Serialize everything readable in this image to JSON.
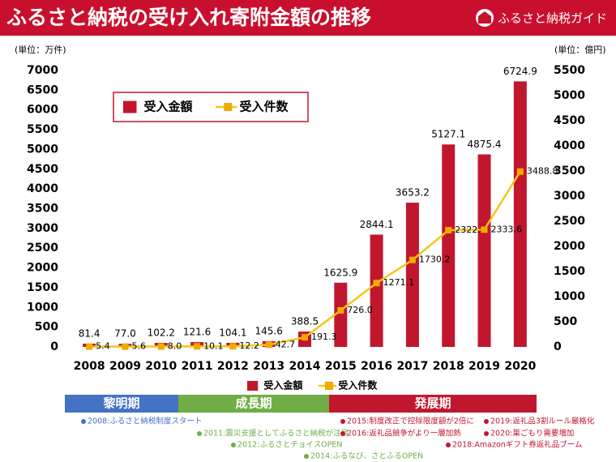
{
  "header": {
    "title": "ふるさと納税の受け入れ寄附金額の推移",
    "brand": "ふるさと納税ガイド"
  },
  "chart_data": {
    "type": "bar-line",
    "ylabel": "(単位：万件)",
    "y2label": "(単位：億円)",
    "categories": [
      "2008",
      "2009",
      "2010",
      "2011",
      "2012",
      "2013",
      "2014",
      "2015",
      "2016",
      "2017",
      "2018",
      "2019",
      "2020"
    ],
    "series": [
      {
        "name": "受入金額",
        "type": "bar",
        "color": "#c0172f",
        "values": [
          81.4,
          77.0,
          102.2,
          121.6,
          104.1,
          145.6,
          388.5,
          1625.9,
          2844.1,
          3653.2,
          5127.1,
          4875.4,
          6724.9
        ],
        "value_labels": [
          "81.4",
          "77.0",
          "102.2",
          "121.6",
          "104.1",
          "145.6",
          "388.5",
          "1625.9",
          "2844.1",
          "3653.2",
          "5127.1",
          "4875.4",
          "6724.9"
        ]
      },
      {
        "name": "受入件数",
        "type": "line",
        "axis": "y2",
        "color": "#f5c518",
        "values": [
          5.4,
          5.6,
          8.0,
          10.1,
          12.2,
          42.7,
          191.3,
          726.0,
          1271.1,
          1730.2,
          2322.4,
          2333.6,
          3488.8
        ],
        "value_labels": [
          "5.4",
          "5.6",
          "8.0",
          "10.1",
          "12.2",
          "42.7",
          "191.3",
          "726.0",
          "1271.1",
          "1730.2",
          "2322.4",
          "2333.6",
          "3488.8"
        ]
      }
    ],
    "ylim": [
      0,
      7000
    ],
    "yticks": [
      0,
      500,
      1000,
      1500,
      2000,
      2500,
      3000,
      3500,
      4000,
      4500,
      5000,
      5500,
      6000,
      6500,
      7000
    ],
    "y2lim": [
      0,
      5500
    ],
    "y2ticks": [
      0,
      500,
      1000,
      1500,
      2000,
      2500,
      3000,
      3500,
      4000,
      4500,
      5000,
      5500
    ]
  },
  "phases": [
    {
      "label": "黎明期",
      "color": "#4472c4"
    },
    {
      "label": "成長期",
      "color": "#70ad47"
    },
    {
      "label": "発展期",
      "color": "#c0172f"
    }
  ],
  "notes": [
    {
      "text": "2008:ふるさと納税制度スタート",
      "color": "#4472c4"
    },
    {
      "text": "2015:制度改正で控除限度額が2倍に",
      "color": "#c0172f"
    },
    {
      "text": "2019:返礼品3割ルール厳格化",
      "color": "#c0172f"
    },
    {
      "text": "2011:震災支援としてふるさと納税が注目",
      "color": "#70ad47"
    },
    {
      "text": "2016:返礼品競争がより一層加熱",
      "color": "#c0172f"
    },
    {
      "text": "2020:巣ごもり需要増加",
      "color": "#c0172f"
    },
    {
      "text": "2012:ふるさとチョイスOPEN",
      "color": "#70ad47"
    },
    {
      "text": "2018:Amazonギフト券返礼品ブーム",
      "color": "#c0172f"
    },
    {
      "text": "2014:ふるなび、さとふるOPEN",
      "color": "#70ad47"
    }
  ]
}
